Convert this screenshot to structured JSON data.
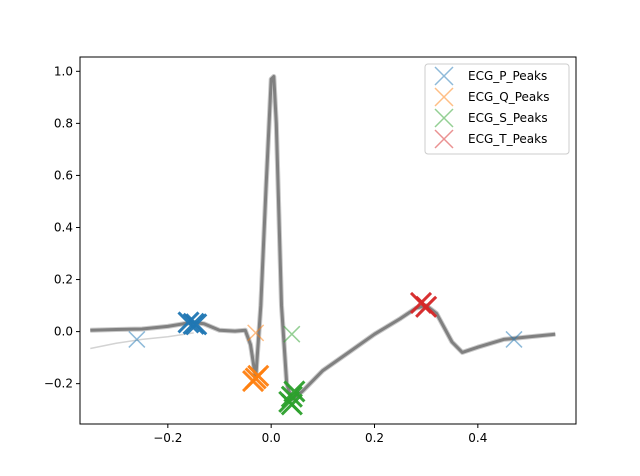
{
  "chart_data": {
    "type": "line",
    "title": "",
    "xlabel": "",
    "ylabel": "",
    "xlim": [
      -0.37,
      0.59
    ],
    "ylim": [
      -0.355,
      1.055
    ],
    "x_ticks": [
      -0.2,
      0.0,
      0.2,
      0.4
    ],
    "x_tick_labels": [
      "−0.2",
      "0.0",
      "0.2",
      "0.4"
    ],
    "y_ticks": [
      -0.2,
      0.0,
      0.2,
      0.4,
      0.6,
      0.8,
      1.0
    ],
    "y_tick_labels": [
      "−0.2",
      "0.0",
      "0.2",
      "0.4",
      "0.6",
      "0.8",
      "1.0"
    ],
    "grid": false,
    "legend_position": "top-right",
    "waveform": {
      "color": "#808080",
      "x": [
        -0.35,
        -0.3,
        -0.25,
        -0.2,
        -0.17,
        -0.15,
        -0.13,
        -0.1,
        -0.07,
        -0.05,
        -0.04,
        -0.03,
        -0.02,
        -0.01,
        0.0,
        0.005,
        0.01,
        0.02,
        0.03,
        0.04,
        0.06,
        0.1,
        0.15,
        0.2,
        0.25,
        0.28,
        0.3,
        0.32,
        0.35,
        0.37,
        0.4,
        0.45,
        0.5,
        0.55
      ],
      "y": [
        0.005,
        0.008,
        0.01,
        0.02,
        0.03,
        0.035,
        0.03,
        0.005,
        0.002,
        0.005,
        -0.05,
        -0.18,
        0.1,
        0.55,
        0.97,
        0.98,
        0.8,
        0.1,
        -0.2,
        -0.26,
        -0.23,
        -0.15,
        -0.08,
        -0.01,
        0.05,
        0.09,
        0.1,
        0.07,
        -0.04,
        -0.08,
        -0.06,
        -0.03,
        -0.02,
        -0.01
      ]
    },
    "faint_trace": {
      "color": "#d3d3d3",
      "x": [
        -0.35,
        -0.3,
        -0.25,
        -0.2,
        -0.15
      ],
      "y": [
        -0.065,
        -0.045,
        -0.03,
        -0.02,
        -0.005
      ]
    },
    "series": [
      {
        "name": "ECG_P_Peaks",
        "color": "#1f77b4",
        "points": [
          [
            -0.26,
            -0.03
          ],
          [
            -0.15,
            0.03
          ],
          [
            -0.16,
            0.035
          ],
          [
            -0.145,
            0.028
          ],
          [
            0.47,
            -0.03
          ]
        ]
      },
      {
        "name": "ECG_Q_Peaks",
        "color": "#ff7f0e",
        "points": [
          [
            -0.03,
            -0.005
          ],
          [
            -0.03,
            -0.18
          ],
          [
            -0.025,
            -0.17
          ],
          [
            -0.035,
            -0.19
          ]
        ]
      },
      {
        "name": "ECG_S_Peaks",
        "color": "#2ca02c",
        "points": [
          [
            0.04,
            -0.01
          ],
          [
            0.04,
            -0.25
          ],
          [
            0.035,
            -0.27
          ],
          [
            0.045,
            -0.23
          ],
          [
            0.04,
            -0.28
          ]
        ]
      },
      {
        "name": "ECG_T_Peaks",
        "color": "#d62728",
        "points": [
          [
            0.3,
            0.1
          ],
          [
            0.29,
            0.11
          ],
          [
            0.3,
            0.095
          ]
        ]
      }
    ]
  }
}
